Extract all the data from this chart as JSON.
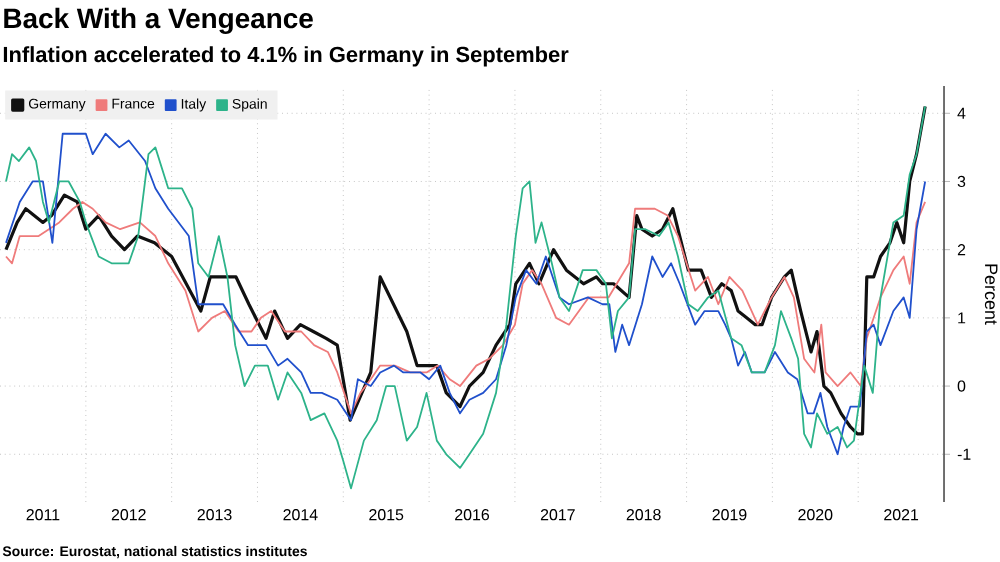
{
  "chart_data": {
    "type": "line",
    "title": "Back With a Vengeance",
    "subtitle": "Inflation accelerated to 4.1% in Germany in September",
    "ylabel": "Percent",
    "annotations": [
      "Source: Eurostat, national statistics institutes"
    ],
    "xlim": [
      2011.0,
      2022.0
    ],
    "ylim": [
      -1.7,
      4.4
    ],
    "xticks": [
      {
        "value": 2012,
        "label": null
      },
      {
        "value": 2013,
        "label": null
      },
      {
        "value": 2014,
        "label": null
      },
      {
        "value": 2015,
        "label": null
      },
      {
        "value": 2016,
        "label": null
      },
      {
        "value": 2017,
        "label": null
      },
      {
        "value": 2018,
        "label": null
      },
      {
        "value": 2019,
        "label": null
      },
      {
        "value": 2020,
        "label": null
      },
      {
        "value": 2021,
        "label": null
      },
      {
        "value": 2011.5,
        "label": "2011"
      },
      {
        "value": 2012.5,
        "label": "2012"
      },
      {
        "value": 2013.5,
        "label": "2013"
      },
      {
        "value": 2014.5,
        "label": "2014"
      },
      {
        "value": 2015.5,
        "label": "2015"
      },
      {
        "value": 2016.5,
        "label": "2016"
      },
      {
        "value": 2017.5,
        "label": "2017"
      },
      {
        "value": 2018.5,
        "label": "2018"
      },
      {
        "value": 2019.5,
        "label": "2019"
      },
      {
        "value": 2020.5,
        "label": "2020"
      },
      {
        "value": 2021.5,
        "label": "2021"
      }
    ],
    "yticks": [
      -1,
      0,
      1,
      2,
      3,
      4
    ],
    "grid": true,
    "legend": "top left",
    "series": [
      {
        "name": "Germany",
        "color": "#111111",
        "x": [
          2011.07,
          2011.2,
          2011.3,
          2011.5,
          2011.6,
          2011.75,
          2011.9,
          2012.0,
          2012.15,
          2012.3,
          2012.45,
          2012.6,
          2012.8,
          2013.0,
          2013.34,
          2013.45,
          2013.6,
          2013.75,
          2013.9,
          2014.1,
          2014.2,
          2014.35,
          2014.5,
          2014.65,
          2014.8,
          2014.93,
          2015.08,
          2015.32,
          2015.43,
          2015.74,
          2015.86,
          2016.09,
          2016.2,
          2016.36,
          2016.47,
          2016.63,
          2016.78,
          2016.94,
          2017.01,
          2017.17,
          2017.28,
          2017.45,
          2017.6,
          2017.8,
          2017.95,
          2018.02,
          2018.15,
          2018.33,
          2018.42,
          2018.48,
          2018.6,
          2018.72,
          2018.84,
          2018.92,
          2019.02,
          2019.17,
          2019.29,
          2019.41,
          2019.52,
          2019.6,
          2019.7,
          2019.8,
          2019.88,
          2019.99,
          2020.14,
          2020.22,
          2020.33,
          2020.45,
          2020.52,
          2020.6,
          2020.68,
          2020.8,
          2020.91,
          2020.99,
          2021.05,
          2021.1,
          2021.18,
          2021.26,
          2021.37,
          2021.45,
          2021.53,
          2021.6,
          2021.68,
          2021.78
        ],
        "values": [
          2.0,
          2.4,
          2.6,
          2.4,
          2.5,
          2.8,
          2.7,
          2.3,
          2.5,
          2.2,
          2.0,
          2.2,
          2.1,
          1.9,
          1.1,
          1.6,
          1.6,
          1.6,
          1.2,
          0.7,
          1.1,
          0.7,
          0.9,
          0.8,
          0.7,
          0.6,
          -0.5,
          0.2,
          1.6,
          0.8,
          0.3,
          0.3,
          -0.1,
          -0.3,
          0.0,
          0.2,
          0.6,
          0.9,
          1.5,
          1.8,
          1.5,
          2.0,
          1.7,
          1.5,
          1.6,
          1.5,
          1.5,
          1.3,
          2.5,
          2.3,
          2.2,
          2.3,
          2.6,
          2.2,
          1.7,
          1.7,
          1.3,
          1.5,
          1.4,
          1.1,
          1.0,
          0.9,
          0.9,
          1.3,
          1.6,
          1.7,
          1.1,
          0.5,
          0.8,
          0.0,
          -0.1,
          -0.4,
          -0.6,
          -0.7,
          -0.7,
          1.6,
          1.6,
          1.9,
          2.1,
          2.4,
          2.1,
          3.0,
          3.4,
          4.1
        ]
      },
      {
        "name": "France",
        "color": "#ef7b7b",
        "x": [
          2011.07,
          2011.14,
          2011.23,
          2011.45,
          2011.69,
          2011.85,
          2011.96,
          2012.08,
          2012.23,
          2012.4,
          2012.63,
          2012.81,
          2012.96,
          2013.16,
          2013.31,
          2013.47,
          2013.62,
          2013.78,
          2013.93,
          2014.04,
          2014.16,
          2014.32,
          2014.51,
          2014.66,
          2014.82,
          2014.93,
          2015.09,
          2015.2,
          2015.32,
          2015.43,
          2015.6,
          2015.78,
          2015.97,
          2016.1,
          2016.24,
          2016.36,
          2016.55,
          2016.7,
          2016.86,
          2017.0,
          2017.09,
          2017.2,
          2017.31,
          2017.48,
          2017.63,
          2017.86,
          2018.09,
          2018.33,
          2018.4,
          2018.63,
          2018.78,
          2018.9,
          2019.1,
          2019.25,
          2019.37,
          2019.5,
          2019.65,
          2019.83,
          2019.99,
          2020.14,
          2020.25,
          2020.37,
          2020.49,
          2020.57,
          2020.62,
          2020.76,
          2020.91,
          2021.03,
          2021.1,
          2021.26,
          2021.41,
          2021.53,
          2021.6,
          2021.68,
          2021.78
        ],
        "values": [
          1.9,
          1.8,
          2.2,
          2.2,
          2.4,
          2.6,
          2.7,
          2.6,
          2.4,
          2.3,
          2.4,
          2.2,
          1.8,
          1.4,
          0.8,
          1.0,
          1.1,
          0.8,
          0.8,
          1.0,
          1.1,
          0.8,
          0.8,
          0.6,
          0.5,
          0.2,
          -0.4,
          -0.1,
          0.1,
          0.3,
          0.3,
          0.2,
          0.2,
          0.3,
          0.1,
          0.0,
          0.3,
          0.4,
          0.6,
          0.9,
          1.5,
          1.7,
          1.5,
          1.0,
          0.9,
          1.3,
          1.3,
          1.8,
          2.6,
          2.6,
          2.5,
          2.2,
          1.4,
          1.6,
          1.2,
          1.6,
          1.4,
          0.9,
          1.3,
          1.6,
          1.3,
          0.4,
          0.2,
          0.9,
          0.2,
          0.0,
          0.2,
          0.0,
          0.7,
          1.3,
          1.7,
          1.9,
          1.5,
          2.4,
          2.7
        ]
      },
      {
        "name": "Italy",
        "color": "#2050cc",
        "x": [
          2011.07,
          2011.23,
          2011.38,
          2011.5,
          2011.61,
          2011.73,
          2012.0,
          2012.08,
          2012.23,
          2012.39,
          2012.5,
          2012.69,
          2012.81,
          2012.96,
          2013.2,
          2013.31,
          2013.47,
          2013.6,
          2013.74,
          2013.89,
          2014.1,
          2014.24,
          2014.35,
          2014.51,
          2014.62,
          2014.75,
          2014.93,
          2015.09,
          2015.17,
          2015.32,
          2015.43,
          2015.59,
          2015.7,
          2015.9,
          2016.0,
          2016.13,
          2016.24,
          2016.36,
          2016.47,
          2016.63,
          2016.78,
          2016.9,
          2017.01,
          2017.13,
          2017.25,
          2017.36,
          2017.52,
          2017.63,
          2017.85,
          2018.02,
          2018.1,
          2018.17,
          2018.25,
          2018.33,
          2018.48,
          2018.6,
          2018.72,
          2018.82,
          2018.92,
          2019.1,
          2019.21,
          2019.37,
          2019.45,
          2019.52,
          2019.6,
          2019.68,
          2019.76,
          2019.91,
          2020.03,
          2020.18,
          2020.29,
          2020.41,
          2020.48,
          2020.56,
          2020.64,
          2020.76,
          2020.83,
          2020.91,
          2021.02,
          2021.1,
          2021.18,
          2021.26,
          2021.41,
          2021.53,
          2021.6,
          2021.68,
          2021.78
        ],
        "values": [
          2.1,
          2.7,
          3.0,
          3.0,
          2.1,
          3.7,
          3.7,
          3.4,
          3.7,
          3.5,
          3.6,
          3.3,
          2.9,
          2.6,
          2.2,
          1.2,
          1.2,
          1.2,
          0.9,
          0.6,
          0.6,
          0.3,
          0.4,
          0.2,
          -0.1,
          -0.1,
          -0.2,
          -0.5,
          0.1,
          0.0,
          0.2,
          0.3,
          0.2,
          0.2,
          0.1,
          0.3,
          -0.1,
          -0.4,
          -0.2,
          -0.1,
          0.1,
          0.6,
          1.3,
          1.7,
          1.5,
          1.9,
          1.3,
          1.2,
          1.3,
          1.2,
          1.2,
          0.5,
          0.9,
          0.6,
          1.2,
          1.9,
          1.6,
          1.8,
          1.5,
          0.9,
          1.1,
          1.1,
          0.9,
          0.7,
          0.3,
          0.5,
          0.2,
          0.2,
          0.5,
          0.2,
          0.1,
          -0.4,
          -0.4,
          -0.1,
          -0.6,
          -1.0,
          -0.6,
          -0.3,
          -0.3,
          0.8,
          0.9,
          0.6,
          1.1,
          1.3,
          1.0,
          2.3,
          3.0
        ]
      },
      {
        "name": "Spain",
        "color": "#2db38a",
        "x": [
          2011.07,
          2011.14,
          2011.22,
          2011.34,
          2011.42,
          2011.5,
          2011.57,
          2011.69,
          2011.8,
          2011.93,
          2012.0,
          2012.15,
          2012.3,
          2012.5,
          2012.61,
          2012.73,
          2012.81,
          2012.96,
          2013.12,
          2013.24,
          2013.31,
          2013.43,
          2013.55,
          2013.65,
          2013.74,
          2013.85,
          2013.97,
          2014.12,
          2014.24,
          2014.35,
          2014.51,
          2014.62,
          2014.78,
          2014.93,
          2015.0,
          2015.09,
          2015.24,
          2015.39,
          2015.5,
          2015.6,
          2015.74,
          2015.86,
          2015.97,
          2016.09,
          2016.2,
          2016.36,
          2016.47,
          2016.63,
          2016.78,
          2016.9,
          2017.01,
          2017.09,
          2017.17,
          2017.24,
          2017.31,
          2017.43,
          2017.52,
          2017.63,
          2017.79,
          2017.95,
          2018.06,
          2018.13,
          2018.2,
          2018.33,
          2018.4,
          2018.52,
          2018.68,
          2018.79,
          2018.9,
          2019.02,
          2019.13,
          2019.25,
          2019.37,
          2019.52,
          2019.64,
          2019.76,
          2019.91,
          2020.03,
          2020.1,
          2020.22,
          2020.3,
          2020.37,
          2020.45,
          2020.52,
          2020.64,
          2020.76,
          2020.87,
          2020.95,
          2021.07,
          2021.17,
          2021.26,
          2021.41,
          2021.53,
          2021.6,
          2021.68,
          2021.78
        ],
        "values": [
          3.0,
          3.4,
          3.3,
          3.5,
          3.3,
          2.7,
          2.4,
          3.0,
          3.0,
          2.7,
          2.4,
          1.9,
          1.8,
          1.8,
          2.2,
          3.4,
          3.5,
          2.9,
          2.9,
          2.6,
          1.8,
          1.6,
          2.2,
          1.6,
          0.6,
          0.0,
          0.3,
          0.3,
          -0.2,
          0.2,
          -0.1,
          -0.5,
          -0.4,
          -0.8,
          -1.1,
          -1.5,
          -0.8,
          -0.5,
          0.0,
          0.0,
          -0.8,
          -0.6,
          -0.1,
          -0.8,
          -1.0,
          -1.2,
          -1.0,
          -0.7,
          -0.1,
          0.9,
          2.2,
          2.9,
          3.0,
          2.1,
          2.4,
          1.8,
          1.3,
          1.1,
          1.7,
          1.7,
          1.5,
          0.7,
          1.1,
          1.3,
          2.3,
          2.3,
          2.2,
          2.4,
          1.9,
          1.2,
          1.1,
          1.3,
          1.4,
          0.7,
          0.6,
          0.2,
          0.2,
          0.6,
          1.1,
          0.7,
          0.4,
          -0.7,
          -0.9,
          -0.4,
          -0.7,
          -0.6,
          -0.9,
          -0.8,
          0.3,
          -0.1,
          1.3,
          2.4,
          2.5,
          3.1,
          3.4,
          4.1
        ]
      }
    ]
  }
}
